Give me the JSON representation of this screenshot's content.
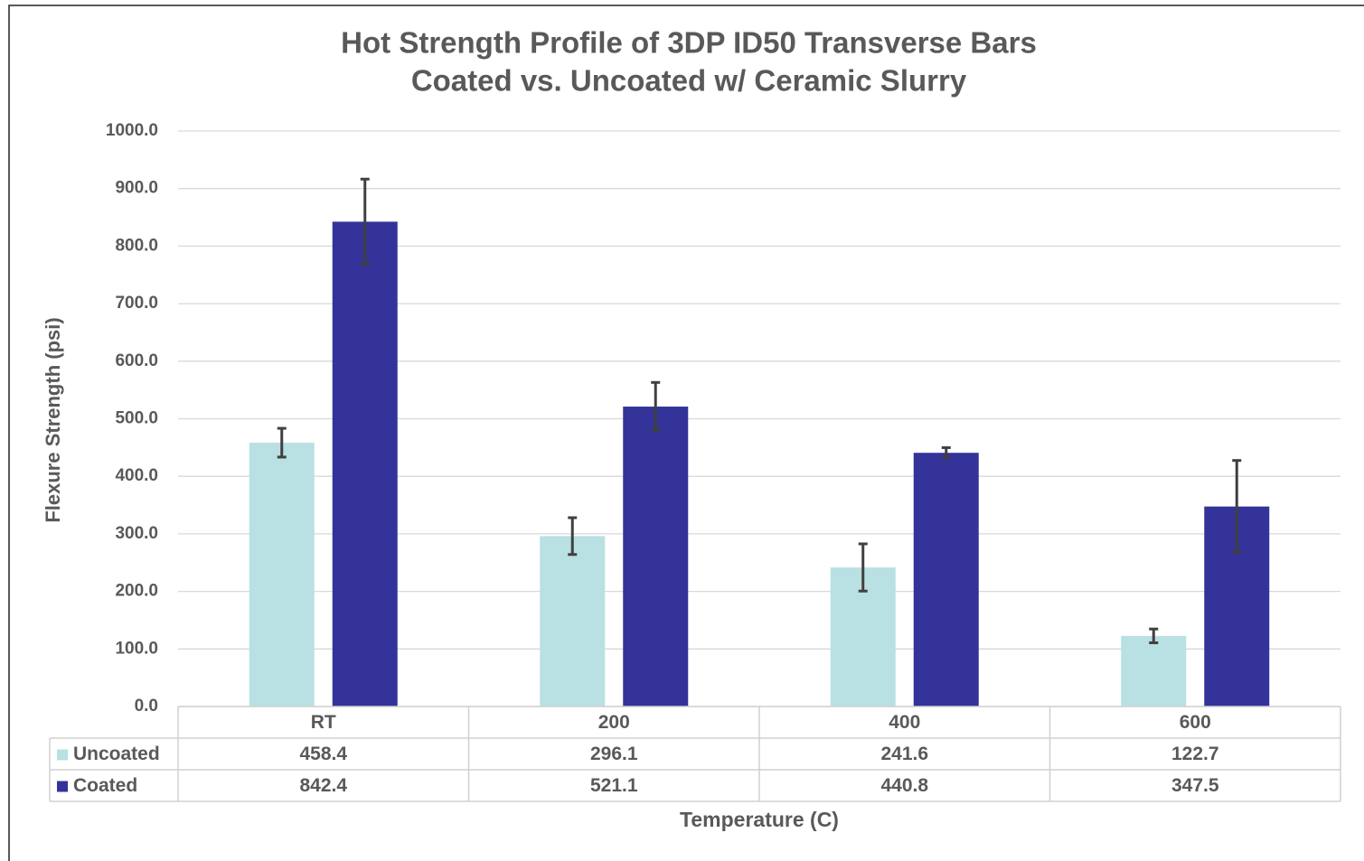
{
  "chart_data": {
    "type": "bar",
    "title": "Hot Strength Profile of 3DP ID50 Transverse Bars",
    "subtitle": "Coated vs. Uncoated w/ Ceramic Slurry",
    "x_label": "Temperature (C)",
    "y_label": "Flexure Strength (psi)",
    "categories": [
      "RT",
      "200",
      "400",
      "600"
    ],
    "series": [
      {
        "name": "Uncoated",
        "color": "#b9e0e3",
        "values": [
          458.4,
          296.1,
          241.6,
          122.7
        ],
        "errors": [
          25,
          32,
          41,
          12
        ]
      },
      {
        "name": "Coated",
        "color": "#333399",
        "values": [
          842.4,
          521.1,
          440.8,
          347.5
        ],
        "errors": [
          74,
          42,
          9,
          80
        ]
      }
    ],
    "ylim": [
      0,
      1000
    ],
    "yticks": [
      {
        "value": 0,
        "label": "0.0"
      },
      {
        "value": 100,
        "label": "100.0"
      },
      {
        "value": 200,
        "label": "200.0"
      },
      {
        "value": 300,
        "label": "300.0"
      },
      {
        "value": 400,
        "label": "400.0"
      },
      {
        "value": 500,
        "label": "500.0"
      },
      {
        "value": 600,
        "label": "600.0"
      },
      {
        "value": 700,
        "label": "700.0"
      },
      {
        "value": 800,
        "label": "800.0"
      },
      {
        "value": 900,
        "label": "900.0"
      },
      {
        "value": 1000,
        "label": "1000.0"
      }
    ],
    "grid": true,
    "legend": "data-table"
  }
}
